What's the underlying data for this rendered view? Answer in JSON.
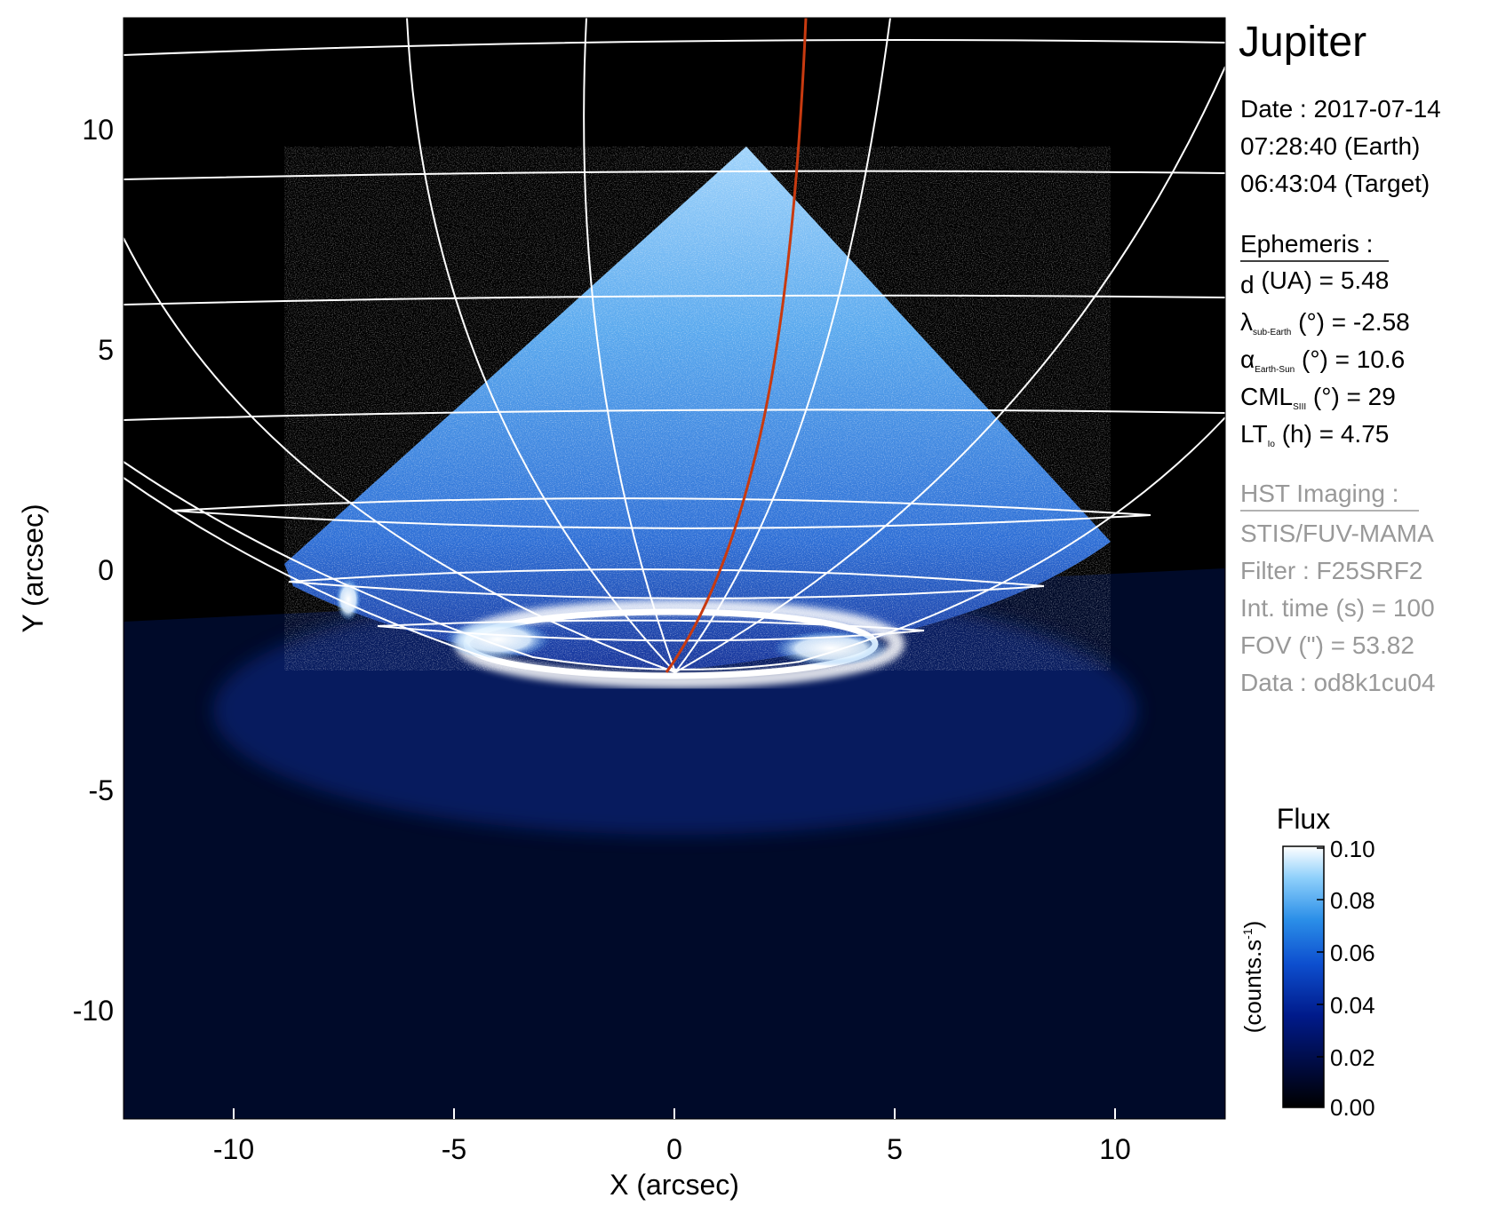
{
  "title": "Jupiter",
  "observation": {
    "date_line": "Date : 2017-07-14",
    "earth_time": "07:28:40 (Earth)",
    "target_time": "06:43:04 (Target)"
  },
  "ephemeris": {
    "heading": "Ephemeris :",
    "rows": [
      {
        "sym": "d",
        "sub": "",
        "rest": " (UA)    = 5.48"
      },
      {
        "sym": "λ",
        "sub": "sub-Earth",
        "rest": " (°) = -2.58"
      },
      {
        "sym": "α",
        "sub": "Earth-Sun",
        "rest": " (°) = 10.6"
      },
      {
        "sym": "CML",
        "sub": "SIII",
        "rest": " (°) = 29"
      },
      {
        "sym": "LT",
        "sub": "Io",
        "rest": " (h) = 4.75"
      }
    ]
  },
  "hst": {
    "heading": "HST Imaging :",
    "lines": [
      "STIS/FUV-MAMA",
      "Filter : F25SRF2",
      "Int. time (s) = 100",
      "FOV (\") = 53.82",
      "Data : od8k1cu04"
    ]
  },
  "colorbar": {
    "title": "Flux",
    "unit_label": "(counts.s",
    "unit_exp": "-1",
    "unit_close": ")",
    "ticks": [
      "0.10",
      "0.08",
      "0.06",
      "0.04",
      "0.02",
      "0.00"
    ],
    "stops": [
      "#000000",
      "#000a3c",
      "#001a8a",
      "#0d4fcf",
      "#2b8fe8",
      "#8fd0fb",
      "#ffffff"
    ]
  },
  "axes": {
    "xlabel": "X (arcsec)",
    "ylabel": "Y (arcsec)",
    "xticks": [
      "-10",
      "-5",
      "0",
      "5",
      "10"
    ],
    "yticks": [
      "10",
      "5",
      "0",
      "-5",
      "-10"
    ]
  },
  "colors": {
    "background": "#000000",
    "grid": "#ffffff",
    "io_footprint_track": "#c83a10",
    "emission": "#2f7fe0"
  }
}
